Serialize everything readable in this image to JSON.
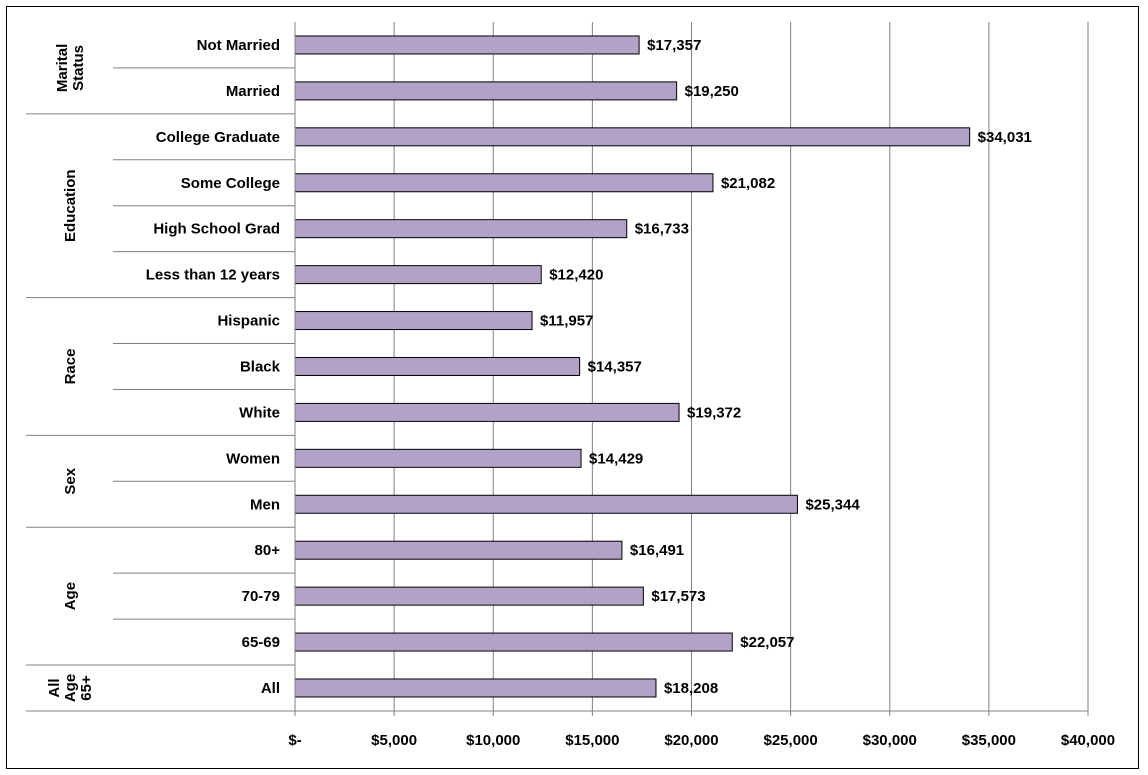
{
  "chart_data": {
    "type": "bar",
    "orientation": "horizontal",
    "title": "",
    "xlabel": "",
    "ylabel": "",
    "xlim": [
      0,
      40000
    ],
    "x_ticks": [
      0,
      5000,
      10000,
      15000,
      20000,
      25000,
      30000,
      35000,
      40000
    ],
    "x_tick_labels": [
      "$-",
      "$5,000",
      "$10,000",
      "$15,000",
      "$20,000",
      "$25,000",
      "$30,000",
      "$35,000",
      "$40,000"
    ],
    "grid": "vertical",
    "bar_color": "#B3A2C7",
    "groups": [
      {
        "name": [
          "Marital",
          "Status"
        ],
        "categories": [
          "Not Married",
          "Married"
        ],
        "values": [
          17357,
          19250
        ],
        "value_labels": [
          "$17,357",
          "$19,250"
        ]
      },
      {
        "name": [
          "Education"
        ],
        "categories": [
          "College Graduate",
          "Some College",
          "High School Grad",
          "Less than 12 years"
        ],
        "values": [
          34031,
          21082,
          16733,
          12420
        ],
        "value_labels": [
          "$34,031",
          "$21,082",
          "$16,733",
          "$12,420"
        ]
      },
      {
        "name": [
          "Race"
        ],
        "categories": [
          "Hispanic",
          "Black",
          "White"
        ],
        "values": [
          11957,
          14357,
          19372
        ],
        "value_labels": [
          "$11,957",
          "$14,357",
          "$19,372"
        ]
      },
      {
        "name": [
          "Sex"
        ],
        "categories": [
          "Women",
          "Men"
        ],
        "values": [
          14429,
          25344
        ],
        "value_labels": [
          "$14,429",
          "$25,344"
        ]
      },
      {
        "name": [
          "Age"
        ],
        "categories": [
          "80+",
          "70-79",
          "65-69"
        ],
        "values": [
          16491,
          17573,
          22057
        ],
        "value_labels": [
          "$16,491",
          "$17,573",
          "$22,057"
        ]
      },
      {
        "name": [
          "All",
          "Age",
          "65+"
        ],
        "categories": [
          "All"
        ],
        "values": [
          18208
        ],
        "value_labels": [
          "$18,208"
        ]
      }
    ]
  }
}
